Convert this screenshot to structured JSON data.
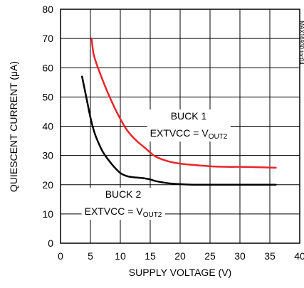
{
  "chart_data": {
    "type": "line",
    "xlabel": "SUPPLY VOLTAGE (V)",
    "ylabel": "QUIESCENT CURRENT (μA)",
    "xlim": [
      0,
      40
    ],
    "ylim": [
      0,
      80
    ],
    "xticks": [
      0,
      5,
      10,
      15,
      20,
      25,
      30,
      35,
      40
    ],
    "yticks": [
      0,
      10,
      20,
      30,
      40,
      50,
      60,
      70,
      80
    ],
    "grid": true,
    "series": [
      {
        "name": "BUCK 1",
        "color": "#e8262b",
        "x": [
          5.2,
          5.5,
          6,
          7,
          8,
          9,
          10,
          11,
          12,
          13,
          14,
          15,
          16,
          18,
          20,
          22,
          25,
          28,
          30,
          33,
          36
        ],
        "y": [
          70,
          65,
          61.5,
          56,
          51,
          46.5,
          42.5,
          39,
          36.5,
          34.5,
          32.8,
          31,
          29.5,
          28,
          27.2,
          26.8,
          26.3,
          26.1,
          26.1,
          26,
          25.8
        ]
      },
      {
        "name": "BUCK 2",
        "color": "#000000",
        "x": [
          3.6,
          4,
          4.5,
          5,
          5.5,
          6,
          7,
          8,
          9,
          10,
          11,
          12,
          14,
          15,
          16,
          18,
          20,
          22,
          25,
          30,
          36
        ],
        "y": [
          57,
          53,
          48,
          43,
          39,
          36,
          31.5,
          28.5,
          26,
          24,
          23,
          22.6,
          22.2,
          21.8,
          21.2,
          20.5,
          20.2,
          20,
          20,
          20,
          20
        ]
      }
    ],
    "annotations": [
      {
        "id": "buck1",
        "series": "BUCK 1",
        "line1": "BUCK 1",
        "line2_main": "EXTVCC = V",
        "line2_sub": "OUT2"
      },
      {
        "id": "buck2",
        "series": "BUCK 2",
        "line1": "BUCK 2",
        "line2_main": "EXTVCC = V",
        "line2_sub": "OUT2"
      }
    ],
    "figure_code": "MAX16930 toc04"
  }
}
